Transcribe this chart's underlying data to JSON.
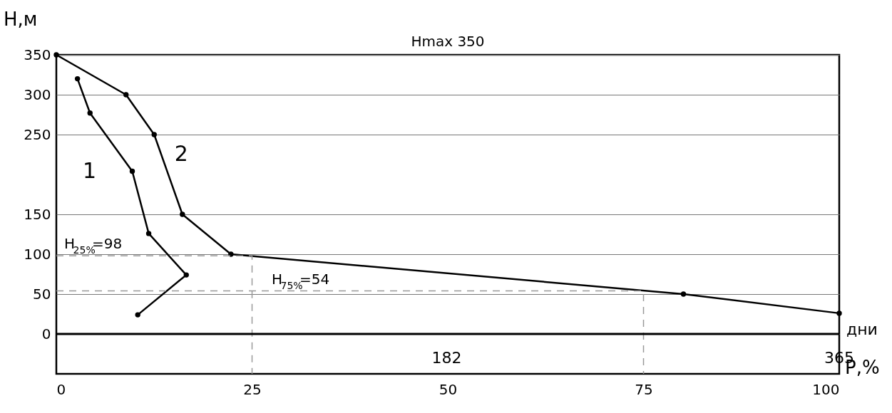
{
  "chart_data": {
    "type": "line",
    "title": "Hmax 350",
    "xlabel": "P,%",
    "ylabel": "Н,м",
    "x2label": "дни",
    "xlim": [
      0,
      100
    ],
    "xticks": [
      0,
      25,
      50,
      75,
      100
    ],
    "ylim": [
      -50,
      350
    ],
    "yticks": [
      0,
      50,
      100,
      150,
      250,
      300,
      350
    ],
    "x2lim": [
      0,
      365
    ],
    "x2ticks": [
      182,
      365
    ],
    "grid": "y",
    "legend": false,
    "marker": "circle",
    "series": [
      {
        "name": "1",
        "color": "#000000",
        "x": [
          2.7,
          4.3,
          9.7,
          11.8,
          16.6,
          10.4
        ],
        "values": [
          320,
          277,
          204,
          126,
          74,
          24
        ]
      },
      {
        "name": "2",
        "color": "#000000",
        "x": [
          0,
          8.9,
          12.5,
          16.1,
          22.3,
          80.1,
          100
        ],
        "values": [
          350,
          300,
          250,
          150,
          100,
          50,
          26
        ]
      },
      {
        "color": "#999999",
        "type": "line",
        "line_style": "dashed",
        "marker": "none",
        "x": [
          0,
          25,
          25
        ],
        "values": [
          98,
          98,
          -50
        ]
      },
      {
        "color": "#999999",
        "type": "line",
        "line_style": "dashed",
        "marker": "none",
        "x": [
          0,
          75,
          75
        ],
        "values": [
          54,
          54,
          -50
        ]
      }
    ],
    "annotations": [
      {
        "text": "H$_{25%}$=98",
        "x": 1,
        "y": 98
      },
      {
        "text": "H$_{75%}$=54",
        "x": 27.5,
        "y": 54
      }
    ]
  }
}
